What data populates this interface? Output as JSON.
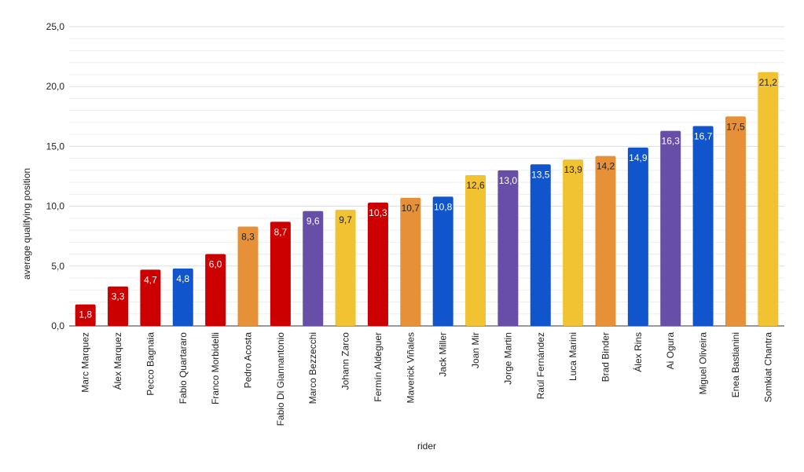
{
  "chart_data": {
    "type": "bar",
    "title": "",
    "xlabel": "rider",
    "ylabel": "average qualifying position",
    "ylim": [
      0,
      25
    ],
    "yticks": [
      "0,0",
      "5,0",
      "10,0",
      "15,0",
      "20,0",
      "25,0"
    ],
    "ytick_values": [
      0,
      5,
      10,
      15,
      20,
      25
    ],
    "grid": true,
    "legend": "none",
    "categories": [
      "Marc Marquez",
      "Álex Marquez",
      "Pecco Bagnaia",
      "Fabio Quartararo",
      "Franco Morbidelli",
      "Pedro Acosta",
      "Fabio Di Giannantonio",
      "Marco Bezzecchi",
      "Johann Zarco",
      "Fermín Aldeguer",
      "Maverick Viñales",
      "Jack Miller",
      "Joan Mir",
      "Jorge Martin",
      "Raúl Fernández",
      "Luca Marini",
      "Brad Binder",
      "Álex Rins",
      "Ai Ogura",
      "Miguel Oliveira",
      "Enea Bastianini",
      "Somkiat Chantra"
    ],
    "values": [
      1.8,
      3.3,
      4.7,
      4.8,
      6.0,
      8.3,
      8.7,
      9.6,
      9.7,
      10.3,
      10.7,
      10.8,
      12.6,
      13.0,
      13.5,
      13.9,
      14.2,
      14.9,
      16.3,
      16.7,
      17.5,
      21.2
    ],
    "data_labels": [
      "1,8",
      "3,3",
      "4,7",
      "4,8",
      "6,0",
      "8,3",
      "8,7",
      "9,6",
      "9,7",
      "10,3",
      "10,7",
      "10,8",
      "12,6",
      "13,0",
      "13,5",
      "13,9",
      "14,2",
      "14,9",
      "16,3",
      "16,7",
      "17,5",
      "21,2"
    ],
    "bar_colors": [
      "#cc0000",
      "#cc0000",
      "#cc0000",
      "#1155cc",
      "#cc0000",
      "#e69138",
      "#cc0000",
      "#674ea7",
      "#f1c232",
      "#cc0000",
      "#e69138",
      "#1155cc",
      "#f1c232",
      "#674ea7",
      "#1155cc",
      "#f1c232",
      "#e69138",
      "#1155cc",
      "#674ea7",
      "#1155cc",
      "#e69138",
      "#f1c232"
    ],
    "label_colors": [
      "#ffffff",
      "#ffffff",
      "#ffffff",
      "#ffffff",
      "#ffffff",
      "#222222",
      "#ffffff",
      "#ffffff",
      "#222222",
      "#ffffff",
      "#222222",
      "#ffffff",
      "#222222",
      "#ffffff",
      "#ffffff",
      "#222222",
      "#222222",
      "#ffffff",
      "#ffffff",
      "#ffffff",
      "#222222",
      "#222222"
    ],
    "gridline_color": "#dddddd",
    "minor_gridline_color": "#eeeeee"
  }
}
